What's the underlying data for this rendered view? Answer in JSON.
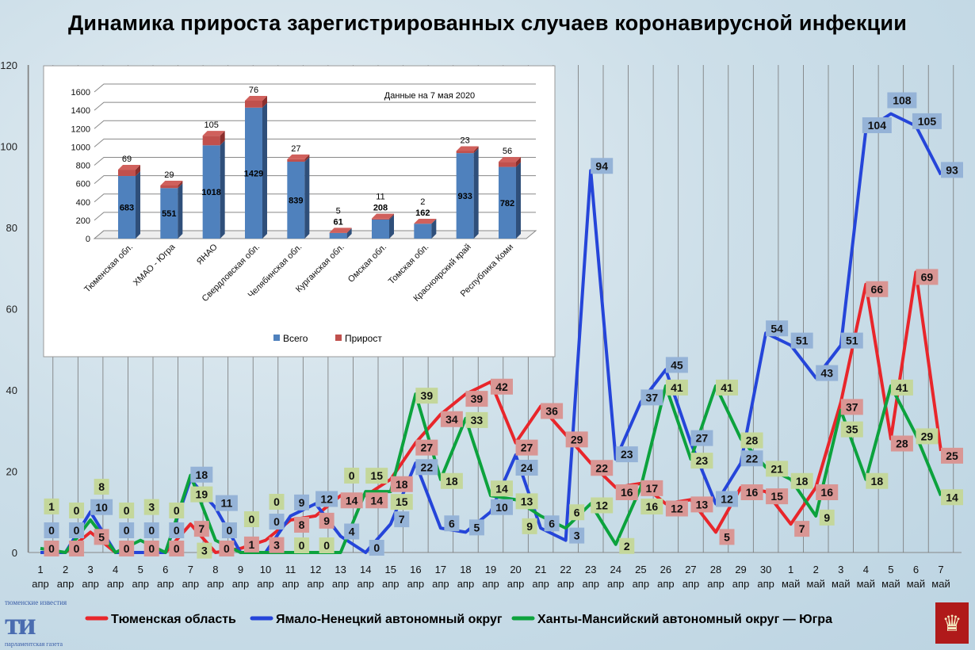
{
  "title": "Динамика прироста зарегистрированных случаев коронавирусной инфекции",
  "logo": {
    "top": "тюменские известия",
    "mark": "ти",
    "bottom": "парламентская газета"
  },
  "chart_data": [
    {
      "type": "line",
      "title": "Динамика прироста зарегистрированных случаев коронавирусной инфекции",
      "ylim": [
        0,
        120
      ],
      "yticks": [
        0,
        20,
        40,
        60,
        80,
        100,
        120
      ],
      "grid": "vertical",
      "legend_position": "bottom",
      "categories": [
        [
          "1",
          "апр"
        ],
        [
          "2",
          "апр"
        ],
        [
          "3",
          "апр"
        ],
        [
          "4",
          "апр"
        ],
        [
          "5",
          "апр"
        ],
        [
          "6",
          "апр"
        ],
        [
          "7",
          "апр"
        ],
        [
          "8",
          "апр"
        ],
        [
          "9",
          "апр"
        ],
        [
          "10",
          "апр"
        ],
        [
          "11",
          "апр"
        ],
        [
          "12",
          "апр"
        ],
        [
          "13",
          "апр"
        ],
        [
          "14",
          "апр"
        ],
        [
          "15",
          "апр"
        ],
        [
          "16",
          "апр"
        ],
        [
          "17",
          "апр"
        ],
        [
          "18",
          "апр"
        ],
        [
          "19",
          "апр"
        ],
        [
          "20",
          "апр"
        ],
        [
          "21",
          "апр"
        ],
        [
          "22",
          "апр"
        ],
        [
          "23",
          "апр"
        ],
        [
          "24",
          "апр"
        ],
        [
          "25",
          "апр"
        ],
        [
          "26",
          "апр"
        ],
        [
          "27",
          "апр"
        ],
        [
          "28",
          "апр"
        ],
        [
          "29",
          "апр"
        ],
        [
          "30",
          "апр"
        ],
        [
          "1",
          "май"
        ],
        [
          "2",
          "май"
        ],
        [
          "3",
          "май"
        ],
        [
          "4",
          "май"
        ],
        [
          "5",
          "май"
        ],
        [
          "6",
          "май"
        ],
        [
          "7",
          "май"
        ]
      ],
      "series": [
        {
          "name": "Тюменская область",
          "color": "#e8262b",
          "label_bg": "#d99694",
          "values": [
            0,
            0,
            5,
            0,
            0,
            0,
            7,
            0,
            1,
            3,
            8,
            9,
            14,
            14,
            18,
            27,
            34,
            39,
            42,
            27,
            36,
            29,
            22,
            16,
            17,
            12,
            13,
            5,
            16,
            15,
            7,
            16,
            37,
            66,
            28,
            69,
            25
          ]
        },
        {
          "name": "Ямало-Ненецкий автономный округ",
          "color": "#2545d9",
          "label_bg": "#95b3d7",
          "values": [
            0,
            0,
            10,
            0,
            0,
            0,
            18,
            11,
            0,
            0,
            9,
            12,
            4,
            0,
            7,
            22,
            6,
            5,
            10,
            24,
            6,
            3,
            94,
            23,
            37,
            45,
            27,
            12,
            22,
            54,
            51,
            43,
            51,
            104,
            108,
            105,
            93
          ]
        },
        {
          "name": "Ханты-Мансийский автономный округ — Югра",
          "color": "#0ca23d",
          "label_bg": "#c4d79b",
          "values": [
            1,
            0,
            8,
            0,
            3,
            0,
            19,
            3,
            0,
            0,
            0,
            0,
            0,
            15,
            15,
            39,
            18,
            33,
            14,
            13,
            9,
            6,
            12,
            2,
            16,
            41,
            23,
            41,
            28,
            21,
            18,
            9,
            35,
            18,
            41,
            29,
            14
          ]
        }
      ]
    },
    {
      "type": "bar",
      "stacked": true,
      "annotation": "Данные на 7 мая 2020",
      "ylim": [
        0,
        1600
      ],
      "yticks": [
        0,
        200,
        400,
        600,
        800,
        1000,
        1200,
        1400,
        1600
      ],
      "legend_position": "bottom",
      "categories": [
        "Тюменская обл.",
        "ХМАО - Югра",
        "ЯНАО",
        "Свердловская обл.",
        "Челябинская обл.",
        "Курганская обл.",
        "Омская обл.",
        "Томская обл.",
        "Красноярский край",
        "Республика Коми"
      ],
      "series": [
        {
          "name": "Всего",
          "color": "#4f81bd",
          "values": [
            683,
            551,
            1018,
            1429,
            839,
            61,
            208,
            162,
            933,
            782
          ]
        },
        {
          "name": "Прирост",
          "color": "#c0504d",
          "values": [
            69,
            29,
            105,
            76,
            27,
            5,
            11,
            2,
            23,
            56
          ]
        }
      ]
    }
  ]
}
